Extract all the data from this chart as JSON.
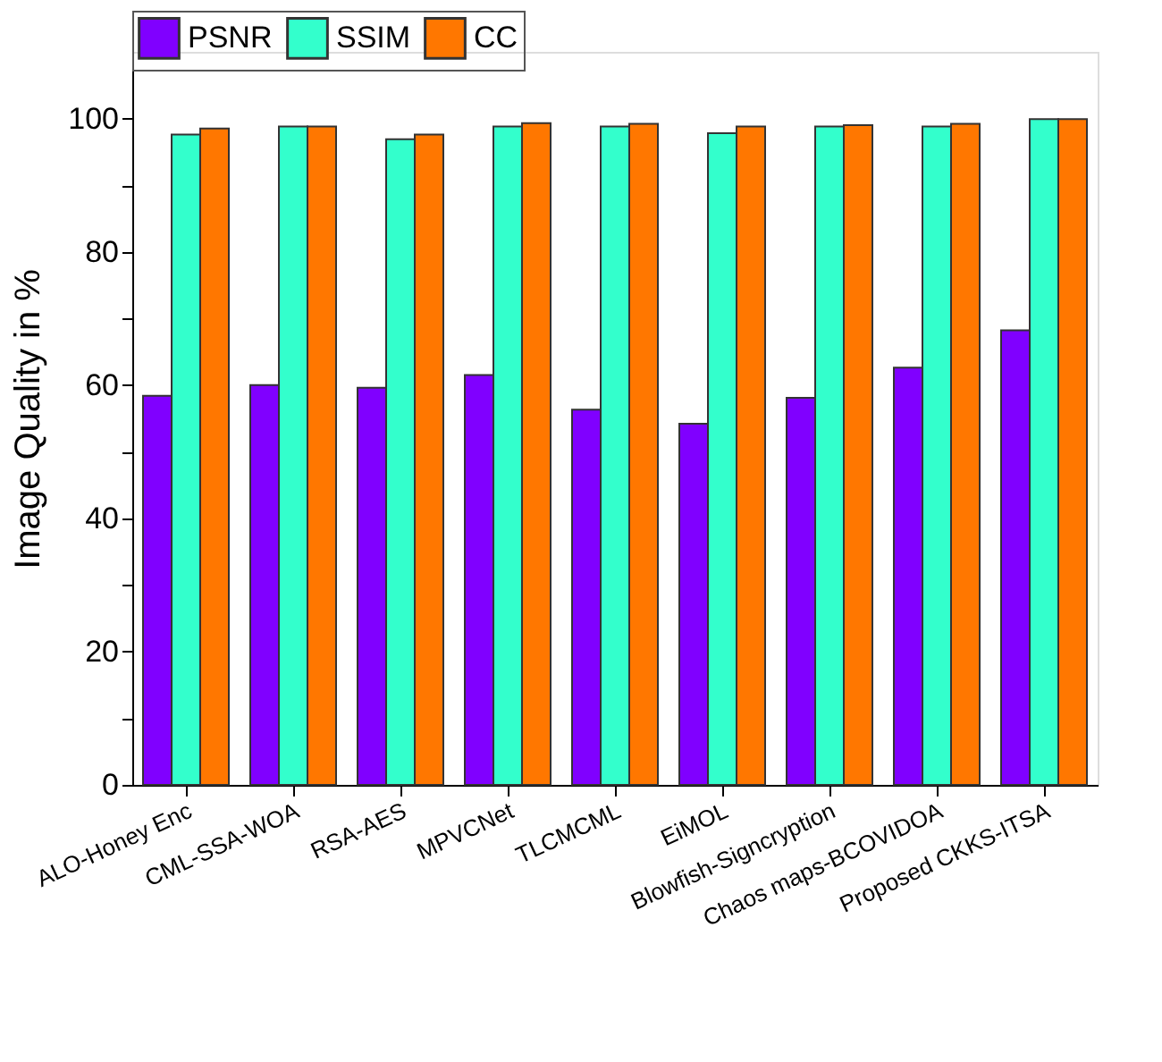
{
  "chart_data": {
    "type": "bar",
    "ylabel": "Image Quality in %",
    "categories": [
      "ALO-Honey Enc",
      "CML-SSA-WOA",
      "RSA-AES",
      "MPVCNet",
      "TLCMCML",
      "EiMOL",
      "Blowfish-Signcryption",
      "Chaos maps-BCOVIDOA",
      "Proposed CKKS-ITSA"
    ],
    "series": [
      {
        "name": "PSNR",
        "color": "#8000ff",
        "values": [
          58.4,
          60.0,
          59.6,
          61.5,
          56.3,
          54.2,
          58.1,
          62.6,
          68.2
        ]
      },
      {
        "name": "SSIM",
        "color": "#33ffcc",
        "values": [
          97.6,
          98.8,
          96.9,
          98.8,
          98.8,
          97.8,
          98.8,
          98.8,
          99.9
        ]
      },
      {
        "name": "CC",
        "color": "#ff7700",
        "values": [
          98.5,
          98.8,
          97.6,
          99.3,
          99.2,
          98.8,
          99.0,
          99.2,
          99.9
        ]
      }
    ],
    "ylim": [
      0,
      110
    ],
    "yticks": [
      0,
      {
        "value": 10,
        "label": null
      },
      20,
      {
        "value": 30,
        "label": null
      },
      40,
      {
        "value": 50,
        "label": null
      },
      60,
      {
        "value": 70,
        "label": null
      },
      80,
      {
        "value": 90,
        "label": null
      },
      100
    ],
    "grid": false,
    "legend": "top"
  }
}
